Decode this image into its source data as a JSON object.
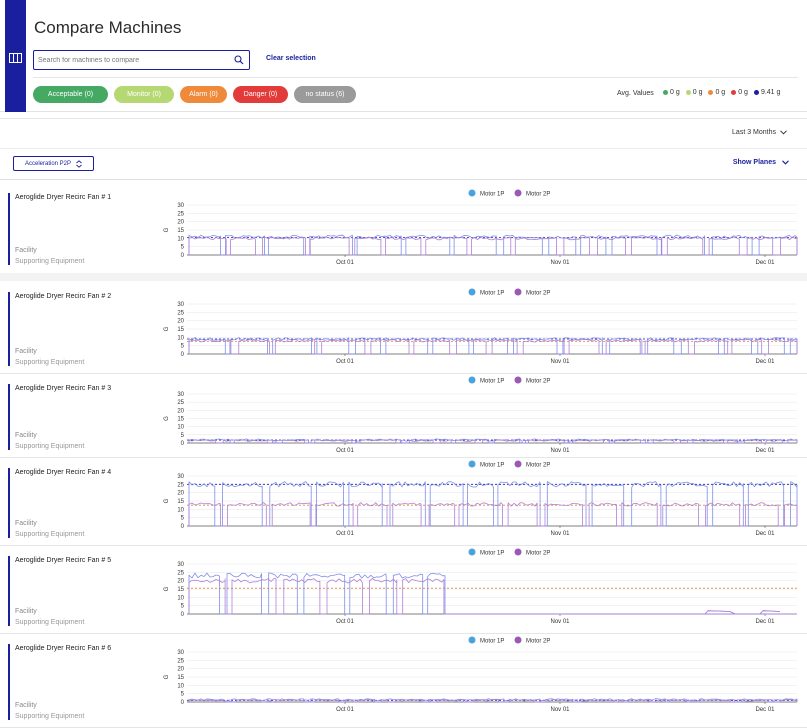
{
  "header": {
    "title": "Compare Machines",
    "search_placeholder": "Search for machines to compare",
    "clear_label": "Clear selection",
    "pills": [
      {
        "label": "Acceptable (0)",
        "color": "#45a963"
      },
      {
        "label": "Monitor (0)",
        "color": "#b6d873"
      },
      {
        "label": "Alarm (0)",
        "color": "#ef8a3b"
      },
      {
        "label": "Danger (0)",
        "color": "#e33a3a"
      },
      {
        "label": "no status (6)",
        "color": "#9a9a9a"
      }
    ],
    "avg_label": "Avg. Values",
    "avg_values": [
      {
        "label": "0 g",
        "color": "#45a963"
      },
      {
        "label": "0 g",
        "color": "#b6d873"
      },
      {
        "label": "0 g",
        "color": "#ef8a3b"
      },
      {
        "label": "0 g",
        "color": "#e33a3a"
      },
      {
        "label": "9.41 g",
        "color": "#1a1f9e"
      }
    ]
  },
  "toolbar": {
    "range_label": "Last 3 Months",
    "metric_label": "Acceleration P2P",
    "show_planes_label": "Show Planes"
  },
  "legend": [
    {
      "name": "Motor 1P",
      "color": "#4aa3df"
    },
    {
      "name": "Motor 2P",
      "color": "#9b59b6"
    }
  ],
  "machines": [
    {
      "name": "Aeroglide Dryer Recirc Fan # 1",
      "facility": "Facility",
      "equipment": "Supporting Equipment"
    },
    {
      "name": "Aeroglide Dryer Recirc Fan # 2",
      "facility": "Facility",
      "equipment": "Supporting Equipment"
    },
    {
      "name": "Aeroglide Dryer Recirc Fan # 3",
      "facility": "Facility",
      "equipment": "Supporting Equipment"
    },
    {
      "name": "Aeroglide Dryer Recirc Fan # 4",
      "facility": "Facility",
      "equipment": "Supporting Equipment"
    },
    {
      "name": "Aeroglide Dryer Recirc Fan # 5",
      "facility": "Facility",
      "equipment": "Supporting Equipment"
    },
    {
      "name": "Aeroglide Dryer Recirc Fan # 6",
      "facility": "Facility",
      "equipment": "Supporting Equipment"
    }
  ],
  "chart_data": {
    "type": "line",
    "ylabel": "G",
    "yticks": [
      0,
      5,
      10,
      15,
      20,
      25,
      30
    ],
    "ylim": [
      0,
      30
    ],
    "xticks": [
      "Oct 01",
      "Nov 01",
      "Dec 01"
    ],
    "charts": [
      {
        "machine": "Aeroglide Dryer Recirc Fan # 1",
        "series": [
          {
            "name": "Motor 1P",
            "level": 11
          },
          {
            "name": "Motor 2P",
            "level": 10
          }
        ],
        "reference_levels": [
          10.5
        ]
      },
      {
        "machine": "Aeroglide Dryer Recirc Fan # 2",
        "series": [
          {
            "name": "Motor 1P",
            "level": 9
          },
          {
            "name": "Motor 2P",
            "level": 8
          }
        ],
        "reference_levels": [
          9,
          7.5
        ]
      },
      {
        "machine": "Aeroglide Dryer Recirc Fan # 3",
        "series": [
          {
            "name": "Motor 1P",
            "level": 2
          },
          {
            "name": "Motor 2P",
            "level": 1.5
          }
        ],
        "reference_levels": [
          1.8
        ]
      },
      {
        "machine": "Aeroglide Dryer Recirc Fan # 4",
        "series": [
          {
            "name": "Motor 1P",
            "level": 25
          },
          {
            "name": "Motor 2P",
            "level": 13
          }
        ],
        "reference_levels": [
          25,
          12.5
        ]
      },
      {
        "machine": "Aeroglide Dryer Recirc Fan # 5",
        "series": [
          {
            "name": "Motor 1P",
            "level": 23
          },
          {
            "name": "Motor 2P",
            "level": 20
          }
        ],
        "reference_levels": [
          15.5
        ]
      },
      {
        "machine": "Aeroglide Dryer Recirc Fan # 6",
        "series": [
          {
            "name": "Motor 1P",
            "level": 1.5
          },
          {
            "name": "Motor 2P",
            "level": 1
          }
        ],
        "reference_levels": [
          1
        ]
      }
    ]
  }
}
